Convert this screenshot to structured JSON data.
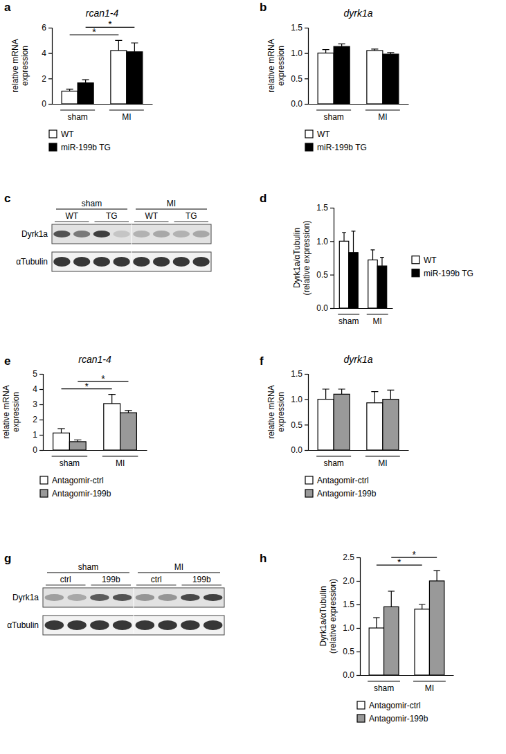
{
  "chart_data": [
    {
      "type": "bar",
      "panel_label": "a",
      "title": "rcan1-4",
      "ylabel": [
        "relative mRNA",
        "expression"
      ],
      "categories": [
        "sham",
        "MI"
      ],
      "series": [
        {
          "name": "WT",
          "color": "#ffffff",
          "values": [
            1.0,
            4.2
          ],
          "errors": [
            0.15,
            0.8
          ]
        },
        {
          "name": "miR-199b TG",
          "color": "#000000",
          "values": [
            1.65,
            4.1
          ],
          "errors": [
            0.25,
            0.7
          ]
        }
      ],
      "ylim": [
        0,
        6
      ],
      "yticks": [
        0,
        2,
        4,
        6
      ],
      "legend": "below",
      "significance": [
        {
          "from": [
            "sham",
            "WT"
          ],
          "to": [
            "MI",
            "WT"
          ],
          "label": "*"
        },
        {
          "from": [
            "sham",
            "miR-199b TG"
          ],
          "to": [
            "MI",
            "miR-199b TG"
          ],
          "label": "*"
        }
      ]
    },
    {
      "type": "bar",
      "panel_label": "b",
      "title": "dyrk1a",
      "ylabel": [
        "relative mRNA",
        "expression"
      ],
      "categories": [
        "sham",
        "MI"
      ],
      "series": [
        {
          "name": "WT",
          "color": "#ffffff",
          "values": [
            1.0,
            1.05
          ],
          "errors": [
            0.07,
            0.03
          ]
        },
        {
          "name": "miR-199b TG",
          "color": "#000000",
          "values": [
            1.13,
            0.98
          ],
          "errors": [
            0.05,
            0.03
          ]
        }
      ],
      "ylim": [
        0,
        1.5
      ],
      "yticks": [
        {
          "value": 0,
          "label": "0.0"
        },
        0.5,
        {
          "value": 1,
          "label": "1.0"
        },
        1.5
      ],
      "legend": "below"
    },
    {
      "type": "blot",
      "panel_label": "c",
      "groups": [
        "sham",
        "MI"
      ],
      "lanes": [
        "WT",
        "TG",
        "WT",
        "TG"
      ],
      "rows": [
        "Dyrk1a",
        "αTubulin"
      ]
    },
    {
      "type": "bar",
      "panel_label": "d",
      "ylabel": [
        "Dyrk1a/αTubulin",
        "(relative expression)"
      ],
      "categories": [
        "sham",
        "MI"
      ],
      "series": [
        {
          "name": "WT",
          "color": "#ffffff",
          "values": [
            1.0,
            0.72
          ],
          "errors": [
            0.13,
            0.15
          ]
        },
        {
          "name": "miR-199b TG",
          "color": "#000000",
          "values": [
            0.83,
            0.63
          ],
          "errors": [
            0.32,
            0.13
          ]
        }
      ],
      "ylim": [
        0,
        1.5
      ],
      "yticks": [
        {
          "value": 0,
          "label": "0.0"
        },
        0.5,
        {
          "value": 1,
          "label": "1.0"
        },
        1.5
      ],
      "legend": "right"
    },
    {
      "type": "bar",
      "panel_label": "e",
      "title": "rcan1-4",
      "ylabel": [
        "relative mRNA",
        "expression"
      ],
      "categories": [
        "sham",
        "MI"
      ],
      "series": [
        {
          "name": "Antagomir-ctrl",
          "color": "#ffffff",
          "values": [
            1.12,
            3.05
          ],
          "errors": [
            0.28,
            0.6
          ]
        },
        {
          "name": "Antagomir-199b",
          "color": "#999999",
          "values": [
            0.55,
            2.45
          ],
          "errors": [
            0.12,
            0.15
          ]
        }
      ],
      "ylim": [
        0,
        5
      ],
      "yticks": [
        0,
        1,
        2,
        3,
        4,
        5
      ],
      "legend": "below",
      "significance": [
        {
          "from": [
            "sham",
            "Antagomir-ctrl"
          ],
          "to": [
            "MI",
            "Antagomir-ctrl"
          ],
          "label": "*"
        },
        {
          "from": [
            "sham",
            "Antagomir-199b"
          ],
          "to": [
            "MI",
            "Antagomir-199b"
          ],
          "label": "*"
        }
      ]
    },
    {
      "type": "bar",
      "panel_label": "f",
      "title": "dyrk1a",
      "ylabel": [
        "relative mRNA",
        "expression"
      ],
      "categories": [
        "sham",
        "MI"
      ],
      "series": [
        {
          "name": "Antagomir-ctrl",
          "color": "#ffffff",
          "values": [
            1.0,
            0.93
          ],
          "errors": [
            0.2,
            0.22
          ]
        },
        {
          "name": "Antagomir-199b",
          "color": "#999999",
          "values": [
            1.1,
            1.0
          ],
          "errors": [
            0.1,
            0.18
          ]
        }
      ],
      "ylim": [
        0,
        1.5
      ],
      "yticks": [
        {
          "value": 0,
          "label": "0.0"
        },
        0.5,
        {
          "value": 1,
          "label": "1.0"
        },
        1.5
      ],
      "legend": "below"
    },
    {
      "type": "blot",
      "panel_label": "g",
      "groups": [
        "sham",
        "MI"
      ],
      "lanes": [
        "ctrl",
        "199b",
        "ctrl",
        "199b"
      ],
      "rows": [
        "Dyrk1a",
        "αTubulin"
      ]
    },
    {
      "type": "bar",
      "panel_label": "h",
      "ylabel": [
        "Dyrk1a/αTubulin",
        "(relative expression)"
      ],
      "categories": [
        "sham",
        "MI"
      ],
      "series": [
        {
          "name": "Antagomir-ctrl",
          "color": "#ffffff",
          "values": [
            1.0,
            1.4
          ],
          "errors": [
            0.22,
            0.1
          ]
        },
        {
          "name": "Antagomir-199b",
          "color": "#999999",
          "values": [
            1.45,
            2.0
          ],
          "errors": [
            0.33,
            0.22
          ]
        }
      ],
      "ylim": [
        0,
        2.5
      ],
      "yticks": [
        {
          "value": 0,
          "label": "0.0"
        },
        0.5,
        {
          "value": 1,
          "label": "1.0"
        },
        1.5,
        {
          "value": 2,
          "label": "2.0"
        },
        2.5
      ],
      "legend": "below",
      "significance": [
        {
          "from": [
            "sham",
            "Antagomir-ctrl"
          ],
          "to": [
            "MI",
            "Antagomir-ctrl"
          ],
          "label": "*"
        },
        {
          "from": [
            "sham",
            "Antagomir-199b"
          ],
          "to": [
            "MI",
            "Antagomir-199b"
          ],
          "label": "*"
        }
      ]
    }
  ]
}
